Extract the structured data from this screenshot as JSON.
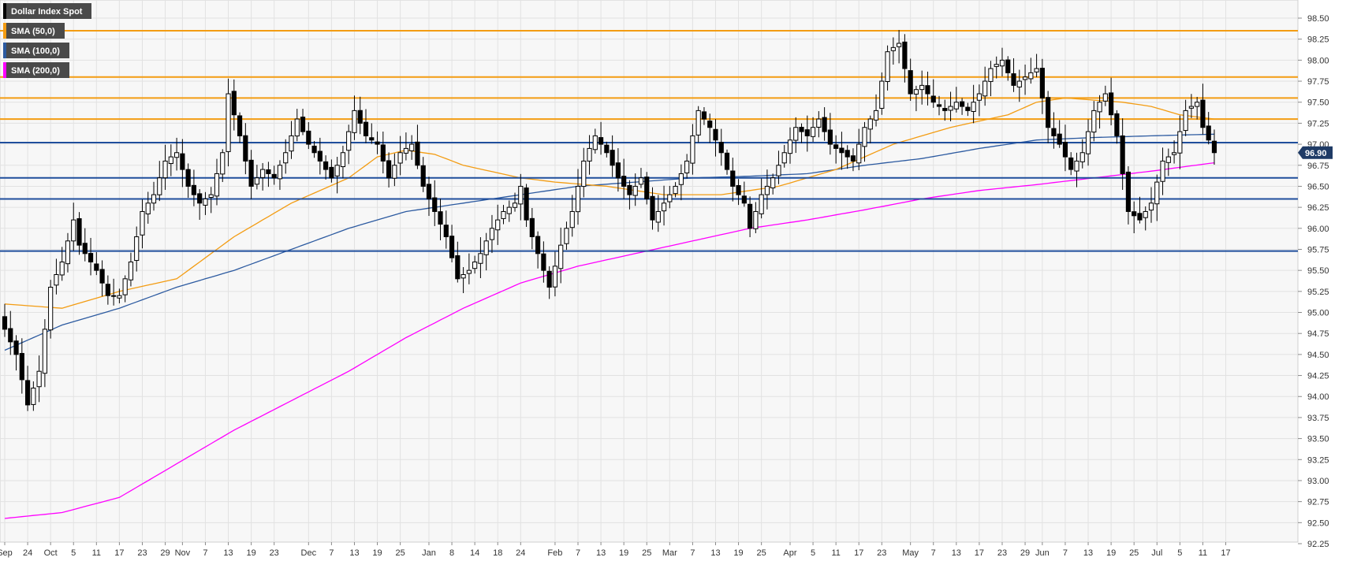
{
  "chart_data": {
    "type": "candlestick",
    "symbol": "Dollar Index Spot",
    "last_price": "96.90",
    "ylim": [
      92.25,
      98.5
    ],
    "y_ticks": [
      "92.25",
      "92.50",
      "92.75",
      "93.00",
      "93.25",
      "93.50",
      "93.75",
      "94.00",
      "94.25",
      "94.50",
      "94.75",
      "95.00",
      "95.25",
      "95.50",
      "95.75",
      "96.00",
      "96.25",
      "96.50",
      "96.75",
      "97.00",
      "97.25",
      "97.50",
      "97.75",
      "98.00",
      "98.25",
      "98.50"
    ],
    "x_ticks": [
      {
        "i": 0,
        "label": "Sep"
      },
      {
        "i": 4,
        "label": "24"
      },
      {
        "i": 8,
        "label": "Oct"
      },
      {
        "i": 12,
        "label": "5"
      },
      {
        "i": 16,
        "label": "11"
      },
      {
        "i": 20,
        "label": "17"
      },
      {
        "i": 24,
        "label": "23"
      },
      {
        "i": 28,
        "label": "29"
      },
      {
        "i": 31,
        "label": "Nov"
      },
      {
        "i": 35,
        "label": "7"
      },
      {
        "i": 39,
        "label": "13"
      },
      {
        "i": 43,
        "label": "19"
      },
      {
        "i": 47,
        "label": "23"
      },
      {
        "i": 53,
        "label": "Dec"
      },
      {
        "i": 57,
        "label": "7"
      },
      {
        "i": 61,
        "label": "13"
      },
      {
        "i": 65,
        "label": "19"
      },
      {
        "i": 69,
        "label": "25"
      },
      {
        "i": 74,
        "label": "Jan"
      },
      {
        "i": 78,
        "label": "8"
      },
      {
        "i": 82,
        "label": "14"
      },
      {
        "i": 86,
        "label": "18"
      },
      {
        "i": 90,
        "label": "24"
      },
      {
        "i": 96,
        "label": "Feb"
      },
      {
        "i": 100,
        "label": "7"
      },
      {
        "i": 104,
        "label": "13"
      },
      {
        "i": 108,
        "label": "19"
      },
      {
        "i": 112,
        "label": "25"
      },
      {
        "i": 116,
        "label": "Mar"
      },
      {
        "i": 120,
        "label": "7"
      },
      {
        "i": 124,
        "label": "13"
      },
      {
        "i": 128,
        "label": "19"
      },
      {
        "i": 132,
        "label": "25"
      },
      {
        "i": 137,
        "label": "Apr"
      },
      {
        "i": 141,
        "label": "5"
      },
      {
        "i": 145,
        "label": "11"
      },
      {
        "i": 149,
        "label": "17"
      },
      {
        "i": 153,
        "label": "23"
      },
      {
        "i": 158,
        "label": "May"
      },
      {
        "i": 162,
        "label": "7"
      },
      {
        "i": 166,
        "label": "13"
      },
      {
        "i": 170,
        "label": "17"
      },
      {
        "i": 174,
        "label": "23"
      },
      {
        "i": 178,
        "label": "29"
      },
      {
        "i": 181,
        "label": "Jun"
      },
      {
        "i": 185,
        "label": "7"
      },
      {
        "i": 189,
        "label": "13"
      },
      {
        "i": 193,
        "label": "19"
      },
      {
        "i": 197,
        "label": "25"
      },
      {
        "i": 201,
        "label": "Jul"
      },
      {
        "i": 205,
        "label": "5"
      },
      {
        "i": 209,
        "label": "11"
      },
      {
        "i": 213,
        "label": "17"
      }
    ],
    "legend": [
      {
        "label": "Dollar Index Spot",
        "color": "#000000"
      },
      {
        "label": "SMA (50,0)",
        "color": "#f39c12"
      },
      {
        "label": "SMA (100,0)",
        "color": "#2c5aa0"
      },
      {
        "label": "SMA (200,0)",
        "color": "#ff00ff"
      }
    ],
    "horizontal_levels": [
      {
        "value": 98.35,
        "color": "#f39c12"
      },
      {
        "value": 97.8,
        "color": "#f39c12"
      },
      {
        "value": 97.55,
        "color": "#f39c12"
      },
      {
        "value": 97.3,
        "color": "#f39c12"
      },
      {
        "value": 97.02,
        "color": "#1f4e9c"
      },
      {
        "value": 96.6,
        "color": "#1f4e9c"
      },
      {
        "value": 96.35,
        "color": "#1f4e9c"
      },
      {
        "value": 95.73,
        "color": "#1f4e9c"
      }
    ],
    "close_keys": [
      [
        0,
        94.8
      ],
      [
        2,
        94.5
      ],
      [
        4,
        93.9
      ],
      [
        6,
        94.3
      ],
      [
        8,
        95.3
      ],
      [
        10,
        95.6
      ],
      [
        12,
        96.1
      ],
      [
        13,
        95.8
      ],
      [
        14,
        95.7
      ],
      [
        16,
        95.5
      ],
      [
        18,
        95.2
      ],
      [
        20,
        95.2
      ],
      [
        22,
        95.6
      ],
      [
        24,
        96.2
      ],
      [
        26,
        96.4
      ],
      [
        28,
        96.8
      ],
      [
        30,
        96.9
      ],
      [
        32,
        96.5
      ],
      [
        34,
        96.3
      ],
      [
        36,
        96.4
      ],
      [
        38,
        96.9
      ],
      [
        39,
        97.6
      ],
      [
        41,
        97.1
      ],
      [
        43,
        96.5
      ],
      [
        45,
        96.7
      ],
      [
        47,
        96.6
      ],
      [
        49,
        96.9
      ],
      [
        51,
        97.3
      ],
      [
        53,
        97.0
      ],
      [
        55,
        96.8
      ],
      [
        57,
        96.6
      ],
      [
        59,
        96.9
      ],
      [
        61,
        97.4
      ],
      [
        63,
        97.1
      ],
      [
        65,
        97.0
      ],
      [
        67,
        96.6
      ],
      [
        69,
        96.9
      ],
      [
        71,
        97.0
      ],
      [
        73,
        96.5
      ],
      [
        75,
        96.2
      ],
      [
        77,
        95.9
      ],
      [
        79,
        95.4
      ],
      [
        81,
        95.5
      ],
      [
        83,
        95.7
      ],
      [
        85,
        96.0
      ],
      [
        87,
        96.2
      ],
      [
        89,
        96.3
      ],
      [
        90,
        96.5
      ],
      [
        91,
        96.1
      ],
      [
        93,
        95.7
      ],
      [
        95,
        95.3
      ],
      [
        97,
        95.8
      ],
      [
        99,
        96.2
      ],
      [
        101,
        96.8
      ],
      [
        103,
        97.1
      ],
      [
        105,
        96.9
      ],
      [
        107,
        96.6
      ],
      [
        109,
        96.4
      ],
      [
        111,
        96.6
      ],
      [
        113,
        96.1
      ],
      [
        115,
        96.3
      ],
      [
        117,
        96.5
      ],
      [
        119,
        96.8
      ],
      [
        121,
        97.4
      ],
      [
        123,
        97.2
      ],
      [
        125,
        96.9
      ],
      [
        127,
        96.5
      ],
      [
        129,
        96.3
      ],
      [
        130,
        96.0
      ],
      [
        132,
        96.4
      ],
      [
        134,
        96.6
      ],
      [
        136,
        96.9
      ],
      [
        138,
        97.2
      ],
      [
        140,
        97.1
      ],
      [
        142,
        97.3
      ],
      [
        144,
        97.0
      ],
      [
        146,
        96.9
      ],
      [
        148,
        96.8
      ],
      [
        150,
        97.2
      ],
      [
        152,
        97.4
      ],
      [
        154,
        98.1
      ],
      [
        156,
        98.2
      ],
      [
        158,
        97.6
      ],
      [
        160,
        97.7
      ],
      [
        162,
        97.5
      ],
      [
        164,
        97.4
      ],
      [
        166,
        97.5
      ],
      [
        168,
        97.4
      ],
      [
        170,
        97.6
      ],
      [
        172,
        97.9
      ],
      [
        174,
        98.0
      ],
      [
        176,
        97.7
      ],
      [
        178,
        97.8
      ],
      [
        180,
        97.9
      ],
      [
        182,
        97.2
      ],
      [
        184,
        97.0
      ],
      [
        186,
        96.7
      ],
      [
        188,
        96.9
      ],
      [
        190,
        97.4
      ],
      [
        192,
        97.6
      ],
      [
        194,
        97.1
      ],
      [
        196,
        96.2
      ],
      [
        198,
        96.1
      ],
      [
        200,
        96.3
      ],
      [
        202,
        96.8
      ],
      [
        204,
        96.9
      ],
      [
        206,
        97.4
      ],
      [
        208,
        97.5
      ],
      [
        209,
        97.2
      ],
      [
        210,
        97.05
      ],
      [
        211,
        96.9
      ]
    ],
    "sma50_keys": [
      [
        0,
        95.1
      ],
      [
        10,
        95.05
      ],
      [
        20,
        95.25
      ],
      [
        30,
        95.4
      ],
      [
        40,
        95.9
      ],
      [
        50,
        96.3
      ],
      [
        60,
        96.6
      ],
      [
        65,
        96.85
      ],
      [
        70,
        96.93
      ],
      [
        75,
        96.88
      ],
      [
        80,
        96.75
      ],
      [
        90,
        96.6
      ],
      [
        96,
        96.55
      ],
      [
        105,
        96.5
      ],
      [
        115,
        96.4
      ],
      [
        125,
        96.4
      ],
      [
        135,
        96.5
      ],
      [
        145,
        96.7
      ],
      [
        155,
        97.0
      ],
      [
        165,
        97.2
      ],
      [
        175,
        97.35
      ],
      [
        180,
        97.5
      ],
      [
        185,
        97.55
      ],
      [
        195,
        97.5
      ],
      [
        200,
        97.45
      ],
      [
        205,
        97.35
      ],
      [
        211,
        97.3
      ]
    ],
    "sma100_keys": [
      [
        0,
        94.55
      ],
      [
        10,
        94.85
      ],
      [
        20,
        95.05
      ],
      [
        30,
        95.3
      ],
      [
        40,
        95.5
      ],
      [
        50,
        95.75
      ],
      [
        60,
        96.0
      ],
      [
        70,
        96.2
      ],
      [
        80,
        96.3
      ],
      [
        90,
        96.4
      ],
      [
        100,
        96.5
      ],
      [
        110,
        96.55
      ],
      [
        120,
        96.6
      ],
      [
        130,
        96.62
      ],
      [
        140,
        96.65
      ],
      [
        150,
        96.75
      ],
      [
        160,
        96.83
      ],
      [
        170,
        96.95
      ],
      [
        180,
        97.05
      ],
      [
        190,
        97.08
      ],
      [
        200,
        97.1
      ],
      [
        211,
        97.12
      ]
    ],
    "sma200_keys": [
      [
        0,
        92.55
      ],
      [
        10,
        92.62
      ],
      [
        20,
        92.8
      ],
      [
        30,
        93.2
      ],
      [
        40,
        93.6
      ],
      [
        50,
        93.95
      ],
      [
        60,
        94.3
      ],
      [
        70,
        94.7
      ],
      [
        80,
        95.05
      ],
      [
        90,
        95.35
      ],
      [
        100,
        95.55
      ],
      [
        110,
        95.7
      ],
      [
        120,
        95.85
      ],
      [
        130,
        96.0
      ],
      [
        140,
        96.1
      ],
      [
        150,
        96.22
      ],
      [
        160,
        96.35
      ],
      [
        170,
        96.45
      ],
      [
        180,
        96.52
      ],
      [
        190,
        96.6
      ],
      [
        200,
        96.68
      ],
      [
        211,
        96.78
      ]
    ]
  }
}
